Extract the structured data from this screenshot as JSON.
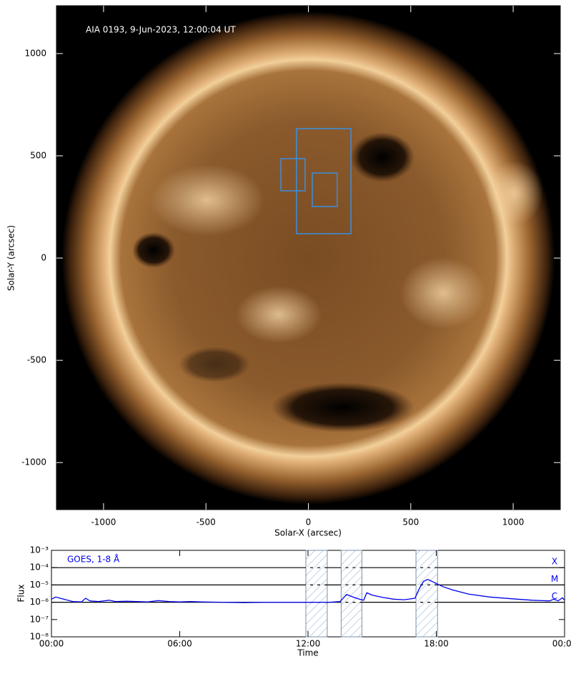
{
  "chart_data": [
    {
      "type": "image",
      "annotation": "AIA 0193, 9-Jun-2023, 12:00:04 UT",
      "xlabel": "Solar-X (arcsec)",
      "ylabel": "Solar-Y (arcsec)",
      "xlim": [
        -1230,
        1230
      ],
      "ylim": [
        -1230,
        1234
      ],
      "xticks": [
        -1000,
        -500,
        0,
        500,
        1000
      ],
      "yticks": [
        -1000,
        -500,
        0,
        500,
        1000
      ],
      "minor_tick_step": 100,
      "box_color": "#3a8fe0",
      "regions": [
        {
          "x": [
            -58,
            208
          ],
          "y": [
            119,
            633
          ]
        },
        {
          "x": [
            -134,
            -16
          ],
          "y": [
            329,
            486
          ]
        },
        {
          "x": [
            19,
            141
          ],
          "y": [
            252,
            416
          ]
        }
      ]
    },
    {
      "type": "line",
      "ylog": true,
      "xlabel": "Time",
      "ylabel": "Flux",
      "xlim": [
        0,
        24
      ],
      "ylim": [
        1e-08,
        0.001
      ],
      "xticks": [
        {
          "value": 0,
          "label": "00:00"
        },
        {
          "value": 6,
          "label": "06:00"
        },
        {
          "value": 12,
          "label": "12:00"
        },
        {
          "value": 18,
          "label": "18:00"
        },
        {
          "value": 24,
          "label": "00:00"
        }
      ],
      "yticks": [
        {
          "value": 0.001,
          "label": "10⁻³"
        },
        {
          "value": 0.0001,
          "label": "10⁻⁴"
        },
        {
          "value": 1e-05,
          "label": "10⁻⁵"
        },
        {
          "value": 1e-06,
          "label": "10⁻⁶"
        },
        {
          "value": 1e-07,
          "label": "10⁻⁷"
        },
        {
          "value": 1e-08,
          "label": "10⁻⁸"
        }
      ],
      "class_levels": [
        {
          "label": "X",
          "value": 0.0001
        },
        {
          "label": "M",
          "value": 1e-05
        },
        {
          "label": "C",
          "value": 1e-06
        }
      ],
      "intervals": [
        [
          11.9,
          12.9
        ],
        [
          13.55,
          14.52
        ],
        [
          17.05,
          18.06
        ]
      ],
      "x": [
        0,
        0.2,
        0.5,
        1,
        1.4,
        1.6,
        1.8,
        2.2,
        2.7,
        3,
        3.5,
        4,
        4.5,
        5,
        5.5,
        6,
        6.5,
        7,
        8,
        9,
        10,
        11,
        12,
        13,
        13.5,
        13.8,
        14.2,
        14.4,
        14.6,
        14.75,
        15,
        15.5,
        16,
        16.5,
        17,
        17.2,
        17.4,
        17.6,
        17.9,
        18.3,
        18.8,
        19.5,
        20.5,
        21.5,
        22.5,
        23.3,
        23.5,
        23.7,
        23.9,
        24
      ],
      "series": [
        {
          "name": "GOES, 1-8 Å",
          "color": "#0000ee",
          "values": [
            1.5e-06,
            2e-06,
            1.6e-06,
            1.1e-06,
            1.05e-06,
            1.7e-06,
            1.2e-06,
            1.1e-06,
            1.3e-06,
            1.1e-06,
            1.15e-06,
            1.1e-06,
            1.05e-06,
            1.25e-06,
            1.1e-06,
            1.05e-06,
            1.1e-06,
            1.05e-06,
            1e-06,
            9.5e-07,
            1e-06,
            1e-06,
            1e-06,
            1e-06,
            1.1e-06,
            2.8e-06,
            1.8e-06,
            1.5e-06,
            1.3e-06,
            3.5e-06,
            2.6e-06,
            1.9e-06,
            1.5e-06,
            1.4e-06,
            1.7e-06,
            6e-06,
            1.6e-05,
            2.1e-05,
            1.4e-05,
            8e-06,
            5e-06,
            3e-06,
            2e-06,
            1.6e-06,
            1.3e-06,
            1.2e-06,
            1.5e-06,
            1.2e-06,
            1.8e-06,
            1.3e-06
          ]
        }
      ]
    }
  ]
}
